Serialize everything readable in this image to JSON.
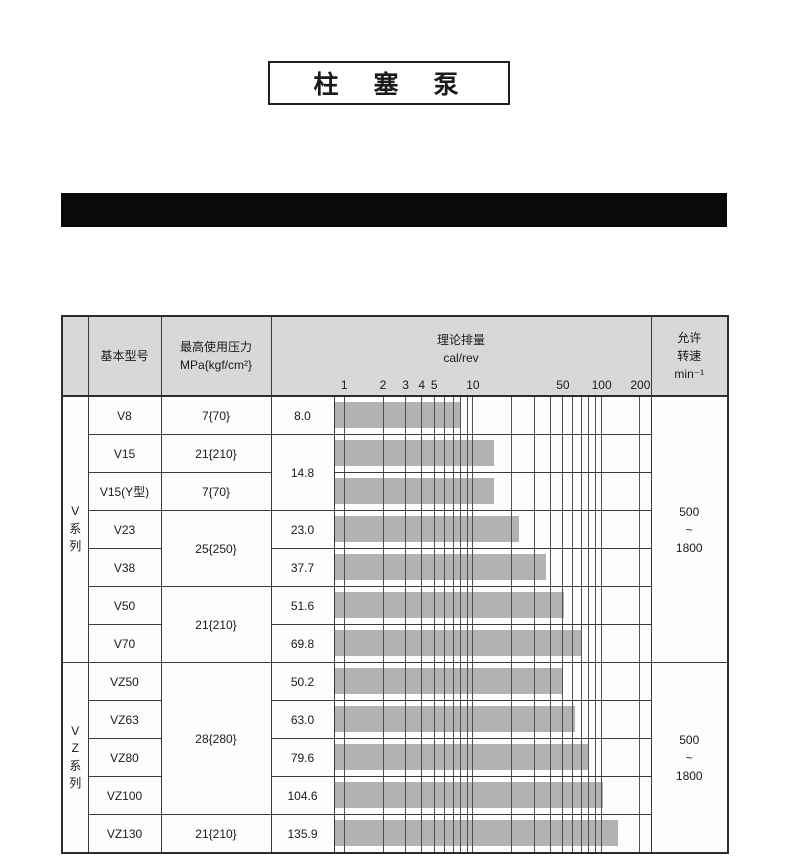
{
  "colors": {
    "page_bg": "#ffffff",
    "header_bg": "#d8d8d8",
    "bar_fill": "#b2b2b2",
    "grid_line": "#4f4f4f",
    "border": "#333333",
    "black_banner": "#0a0a0a",
    "text": "#1a1a1a"
  },
  "title_box": {
    "label": "柱 塞 泵"
  },
  "table": {
    "header": {
      "model": "基本型号",
      "pressure": [
        "最高使用压力",
        "MPa{kgf/cm²}"
      ],
      "displacement": [
        "理论排量",
        "cal/rev"
      ],
      "speed": [
        "允许",
        "转速",
        "min⁻¹"
      ]
    },
    "series": [
      {
        "name": "V系列",
        "chars": [
          "V",
          "系",
          "列"
        ],
        "speed_lines": [
          "500",
          "~",
          "1800"
        ]
      },
      {
        "name": "VZ系列",
        "chars": [
          "V",
          "Z",
          "系",
          "列"
        ],
        "speed_lines": [
          "500",
          "~",
          "1800"
        ]
      }
    ],
    "rows": [
      {
        "model": "V8",
        "pressure": "7{70}",
        "value": "8.0"
      },
      {
        "model": "V15",
        "pressure": "21{210}",
        "value": "14.8"
      },
      {
        "model": "V15(Y型)",
        "pressure": "7{70}"
      },
      {
        "model": "V23",
        "pressure": "25{250}",
        "value": "23.0"
      },
      {
        "model": "V38",
        "value": "37.7"
      },
      {
        "model": "V50",
        "pressure": "21{210}",
        "value": "51.6"
      },
      {
        "model": "V70",
        "value": "69.8"
      },
      {
        "model": "VZ50",
        "pressure": "28{280}",
        "value": "50.2"
      },
      {
        "model": "VZ63",
        "value": "63.0"
      },
      {
        "model": "VZ80",
        "value": "79.6"
      },
      {
        "model": "VZ100",
        "value": "104.6"
      },
      {
        "model": "VZ130",
        "pressure": "21{210}",
        "value": "135.9"
      }
    ]
  },
  "chart_data": {
    "type": "bar",
    "orientation": "horizontal",
    "title": "理论排量",
    "xlabel": "cal/rev",
    "x_scale": "log",
    "x_domain": [
      0.84,
      244
    ],
    "x_ticks": [
      1,
      2,
      3,
      4,
      5,
      10,
      50,
      100,
      200
    ],
    "gridlines": [
      1,
      2,
      3,
      4,
      5,
      6,
      7,
      8,
      9,
      10,
      20,
      30,
      40,
      50,
      60,
      70,
      80,
      90,
      100,
      200
    ],
    "categories": [
      "V8",
      "V15",
      "V15(Y型)",
      "V23",
      "V38",
      "V50",
      "V70",
      "VZ50",
      "VZ63",
      "VZ80",
      "VZ100",
      "VZ130"
    ],
    "values": [
      8.0,
      14.8,
      14.8,
      23.0,
      37.7,
      51.6,
      69.8,
      50.2,
      63.0,
      79.6,
      104.6,
      135.9
    ],
    "legend": null,
    "grid": true
  }
}
